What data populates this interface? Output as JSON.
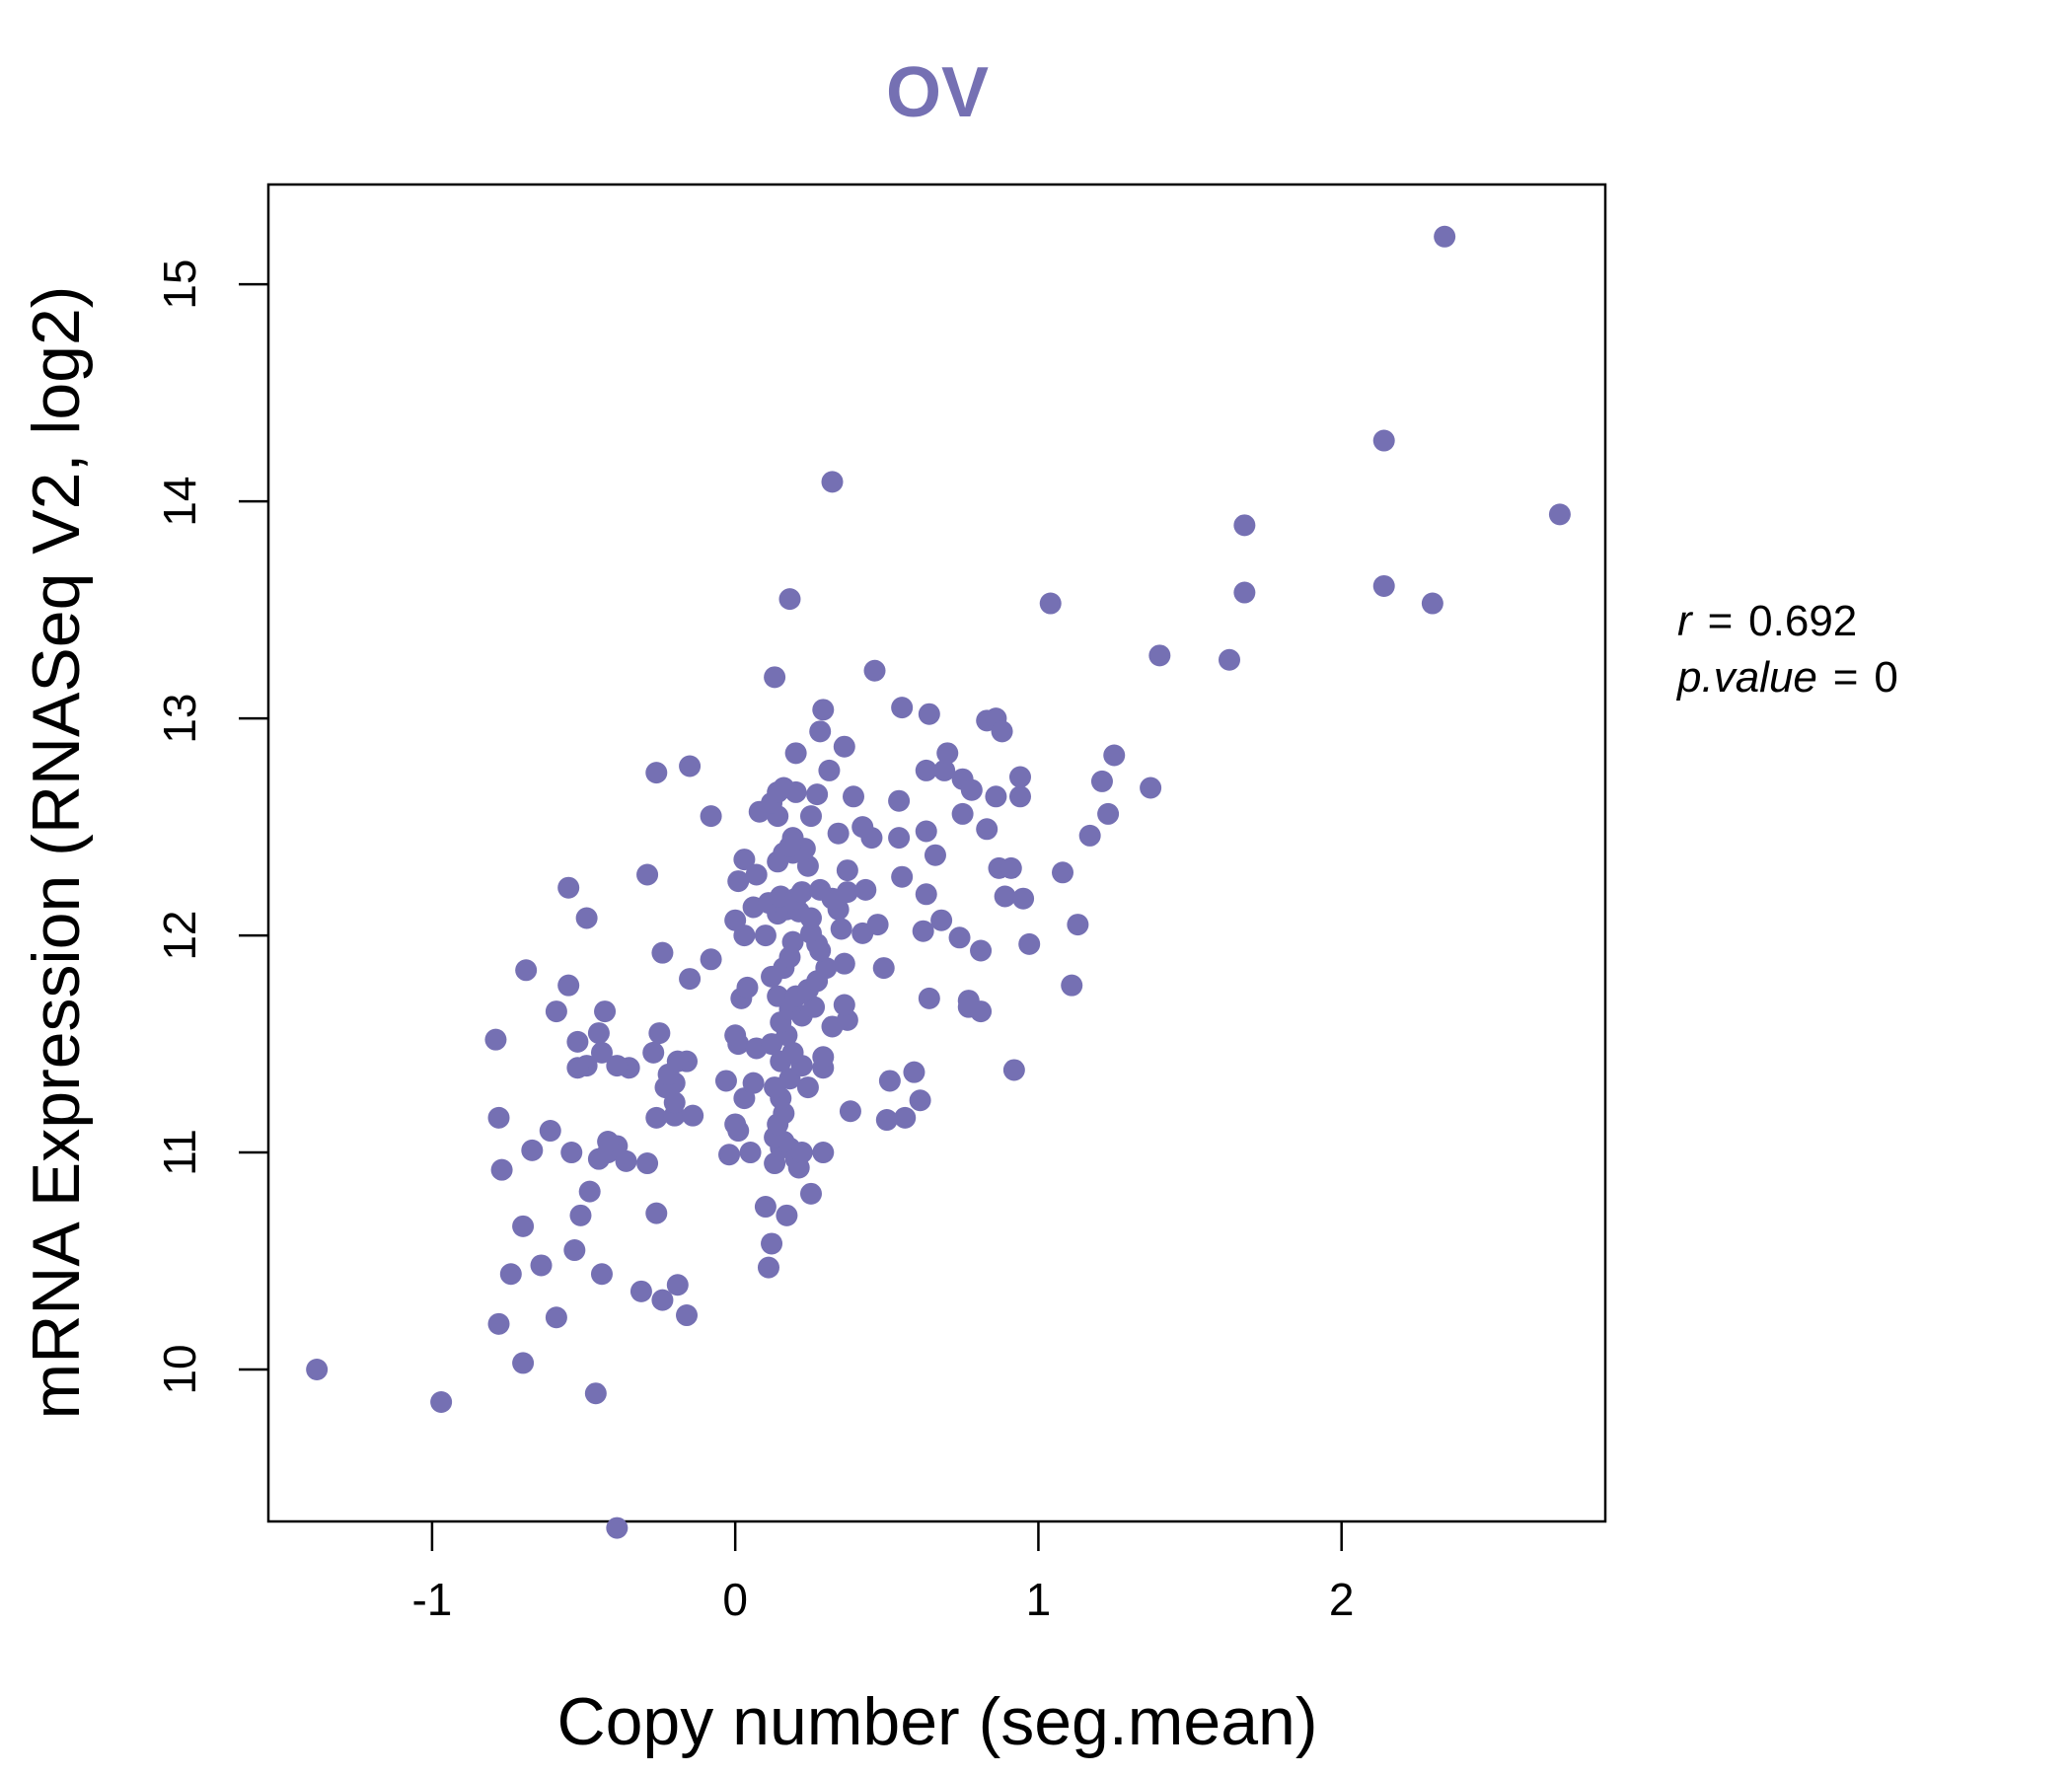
{
  "chart_data": {
    "type": "scatter",
    "title": "OV",
    "xlabel": "Copy number (seg.mean)",
    "ylabel": "mRNA Expression (RNASeq V2, log2)",
    "xlim": [
      -1.54,
      2.87
    ],
    "ylim": [
      9.3,
      15.46
    ],
    "x_ticks": [
      -1,
      0,
      1,
      2
    ],
    "y_ticks": [
      10,
      11,
      12,
      13,
      14,
      15
    ],
    "x_tick_labels": [
      "-1",
      "0",
      "1",
      "2"
    ],
    "y_tick_labels": [
      "10",
      "11",
      "12",
      "13",
      "14",
      "15"
    ],
    "point_color": "#7570b3",
    "title_color": "#7570b3",
    "stats": {
      "r_label": "r",
      "r_value": "0.692",
      "p_label": "p.value",
      "p_value": "0"
    },
    "points": [
      [
        -1.38,
        10.0
      ],
      [
        -0.97,
        9.85
      ],
      [
        -0.39,
        9.27
      ],
      [
        -0.46,
        9.89
      ],
      [
        -0.7,
        10.03
      ],
      [
        -0.78,
        10.21
      ],
      [
        -0.59,
        10.24
      ],
      [
        -0.16,
        10.25
      ],
      [
        -0.24,
        10.32
      ],
      [
        -0.31,
        10.36
      ],
      [
        -0.19,
        10.39
      ],
      [
        -0.44,
        10.44
      ],
      [
        -0.74,
        10.44
      ],
      [
        -0.64,
        10.48
      ],
      [
        -0.53,
        10.55
      ],
      [
        -0.7,
        10.66
      ],
      [
        -0.51,
        10.71
      ],
      [
        -0.26,
        10.72
      ],
      [
        -0.48,
        10.82
      ],
      [
        -0.77,
        10.92
      ],
      [
        -0.29,
        10.95
      ],
      [
        -0.36,
        10.96
      ],
      [
        -0.45,
        10.97
      ],
      [
        -0.42,
        11.0
      ],
      [
        -0.54,
        11.0
      ],
      [
        -0.67,
        11.01
      ],
      [
        -0.39,
        11.03
      ],
      [
        -0.42,
        11.05
      ],
      [
        -0.61,
        11.1
      ],
      [
        -0.78,
        11.16
      ],
      [
        -0.26,
        11.16
      ],
      [
        -0.2,
        11.17
      ],
      [
        -0.14,
        11.17
      ],
      [
        -0.2,
        11.23
      ],
      [
        -0.23,
        11.3
      ],
      [
        -0.2,
        11.32
      ],
      [
        -0.22,
        11.36
      ],
      [
        -0.35,
        11.39
      ],
      [
        -0.39,
        11.4
      ],
      [
        -0.49,
        11.4
      ],
      [
        -0.52,
        11.39
      ],
      [
        -0.16,
        11.42
      ],
      [
        -0.19,
        11.42
      ],
      [
        -0.44,
        11.46
      ],
      [
        -0.27,
        11.46
      ],
      [
        -0.52,
        11.51
      ],
      [
        -0.79,
        11.52
      ],
      [
        -0.45,
        11.55
      ],
      [
        -0.25,
        11.55
      ],
      [
        -0.43,
        11.65
      ],
      [
        -0.59,
        11.65
      ],
      [
        -0.55,
        11.77
      ],
      [
        -0.15,
        11.8
      ],
      [
        -0.69,
        11.84
      ],
      [
        -0.08,
        11.89
      ],
      [
        -0.24,
        11.92
      ],
      [
        -0.49,
        12.08
      ],
      [
        -0.55,
        12.22
      ],
      [
        -0.29,
        12.28
      ],
      [
        -0.08,
        12.55
      ],
      [
        -0.26,
        12.75
      ],
      [
        -0.15,
        12.78
      ],
      [
        0.03,
        11.25
      ],
      [
        0.01,
        11.1
      ],
      [
        0.0,
        11.13
      ],
      [
        -0.02,
        10.99
      ],
      [
        0.05,
        11.0
      ],
      [
        -0.03,
        11.33
      ],
      [
        0.06,
        11.32
      ],
      [
        0.01,
        11.5
      ],
      [
        0.07,
        11.48
      ],
      [
        0.0,
        11.54
      ],
      [
        0.02,
        11.71
      ],
      [
        0.04,
        11.76
      ],
      [
        0.03,
        12.0
      ],
      [
        0.06,
        12.13
      ],
      [
        0.0,
        12.07
      ],
      [
        0.01,
        12.25
      ],
      [
        0.03,
        12.35
      ],
      [
        0.07,
        12.28
      ],
      [
        0.08,
        12.57
      ],
      [
        0.11,
        12.15
      ],
      [
        0.12,
        10.58
      ],
      [
        0.11,
        10.47
      ],
      [
        0.1,
        10.75
      ],
      [
        0.17,
        10.71
      ],
      [
        0.13,
        10.95
      ],
      [
        0.15,
        11.02
      ],
      [
        0.18,
        11.02
      ],
      [
        0.2,
        10.97
      ],
      [
        0.21,
        10.93
      ],
      [
        0.16,
        11.05
      ],
      [
        0.13,
        11.07
      ],
      [
        0.25,
        10.81
      ],
      [
        0.22,
        11.0
      ],
      [
        0.29,
        11.0
      ],
      [
        0.14,
        11.13
      ],
      [
        0.16,
        11.18
      ],
      [
        0.15,
        11.25
      ],
      [
        0.13,
        11.3
      ],
      [
        0.18,
        11.34
      ],
      [
        0.24,
        11.3
      ],
      [
        0.22,
        11.4
      ],
      [
        0.29,
        11.39
      ],
      [
        0.15,
        11.42
      ],
      [
        0.19,
        11.46
      ],
      [
        0.12,
        11.5
      ],
      [
        0.17,
        11.54
      ],
      [
        0.15,
        11.6
      ],
      [
        0.22,
        11.63
      ],
      [
        0.26,
        11.67
      ],
      [
        0.32,
        11.58
      ],
      [
        0.37,
        11.61
      ],
      [
        0.36,
        11.68
      ],
      [
        0.18,
        11.66
      ],
      [
        0.19,
        11.7
      ],
      [
        0.14,
        11.72
      ],
      [
        0.2,
        11.72
      ],
      [
        0.24,
        11.75
      ],
      [
        0.27,
        11.79
      ],
      [
        0.3,
        11.85
      ],
      [
        0.16,
        11.85
      ],
      [
        0.18,
        11.9
      ],
      [
        0.12,
        11.81
      ],
      [
        0.19,
        11.97
      ],
      [
        0.27,
        11.96
      ],
      [
        0.25,
        12.01
      ],
      [
        0.28,
        11.93
      ],
      [
        0.36,
        11.87
      ],
      [
        0.1,
        12.0
      ],
      [
        0.14,
        12.1
      ],
      [
        0.17,
        12.12
      ],
      [
        0.21,
        12.11
      ],
      [
        0.25,
        12.08
      ],
      [
        0.35,
        12.03
      ],
      [
        0.34,
        12.12
      ],
      [
        0.32,
        12.17
      ],
      [
        0.15,
        12.18
      ],
      [
        0.2,
        12.17
      ],
      [
        0.22,
        12.2
      ],
      [
        0.28,
        12.21
      ],
      [
        0.37,
        12.2
      ],
      [
        0.43,
        12.21
      ],
      [
        0.14,
        12.34
      ],
      [
        0.16,
        12.38
      ],
      [
        0.19,
        12.38
      ],
      [
        0.24,
        12.32
      ],
      [
        0.19,
        12.45
      ],
      [
        0.23,
        12.4
      ],
      [
        0.34,
        12.47
      ],
      [
        0.45,
        12.45
      ],
      [
        0.42,
        12.5
      ],
      [
        0.37,
        12.3
      ],
      [
        0.18,
        12.41
      ],
      [
        0.14,
        12.55
      ],
      [
        0.25,
        12.55
      ],
      [
        0.12,
        12.61
      ],
      [
        0.14,
        12.66
      ],
      [
        0.2,
        12.66
      ],
      [
        0.27,
        12.65
      ],
      [
        0.16,
        12.68
      ],
      [
        0.39,
        12.64
      ],
      [
        0.31,
        12.76
      ],
      [
        0.2,
        12.84
      ],
      [
        0.36,
        12.87
      ],
      [
        0.28,
        12.94
      ],
      [
        0.29,
        13.04
      ],
      [
        0.13,
        13.19
      ],
      [
        0.46,
        13.22
      ],
      [
        0.18,
        13.55
      ],
      [
        0.32,
        14.09
      ],
      [
        0.42,
        12.01
      ],
      [
        0.47,
        12.05
      ],
      [
        0.49,
        11.85
      ],
      [
        0.55,
        12.27
      ],
      [
        0.54,
        12.45
      ],
      [
        0.54,
        12.62
      ],
      [
        0.63,
        12.48
      ],
      [
        0.66,
        12.37
      ],
      [
        0.63,
        12.19
      ],
      [
        0.62,
        12.02
      ],
      [
        0.68,
        12.07
      ],
      [
        0.64,
        11.71
      ],
      [
        0.5,
        11.15
      ],
      [
        0.56,
        11.16
      ],
      [
        0.51,
        11.33
      ],
      [
        0.59,
        11.37
      ],
      [
        0.61,
        11.24
      ],
      [
        0.38,
        11.19
      ],
      [
        0.29,
        11.44
      ],
      [
        0.55,
        13.05
      ],
      [
        0.64,
        13.02
      ],
      [
        0.63,
        12.76
      ],
      [
        0.69,
        12.76
      ],
      [
        0.7,
        12.84
      ],
      [
        0.75,
        12.72
      ],
      [
        0.78,
        12.67
      ],
      [
        0.75,
        12.56
      ],
      [
        0.83,
        12.49
      ],
      [
        0.86,
        12.64
      ],
      [
        0.94,
        12.64
      ],
      [
        0.94,
        12.73
      ],
      [
        0.83,
        12.99
      ],
      [
        0.86,
        13.0
      ],
      [
        0.88,
        12.94
      ],
      [
        0.87,
        12.31
      ],
      [
        0.91,
        12.31
      ],
      [
        0.89,
        12.18
      ],
      [
        0.95,
        12.17
      ],
      [
        0.97,
        11.96
      ],
      [
        0.81,
        11.93
      ],
      [
        0.74,
        11.99
      ],
      [
        0.77,
        11.7
      ],
      [
        0.77,
        11.67
      ],
      [
        0.81,
        11.65
      ],
      [
        0.92,
        11.38
      ],
      [
        1.04,
        13.53
      ],
      [
        1.08,
        12.29
      ],
      [
        1.13,
        12.05
      ],
      [
        1.11,
        11.77
      ],
      [
        1.17,
        12.46
      ],
      [
        1.23,
        12.56
      ],
      [
        1.21,
        12.71
      ],
      [
        1.25,
        12.83
      ],
      [
        1.37,
        12.68
      ],
      [
        1.4,
        13.29
      ],
      [
        1.63,
        13.27
      ],
      [
        1.68,
        13.58
      ],
      [
        1.68,
        13.89
      ],
      [
        2.14,
        14.28
      ],
      [
        2.14,
        13.61
      ],
      [
        2.3,
        13.53
      ],
      [
        2.34,
        15.22
      ],
      [
        2.72,
        13.94
      ]
    ]
  }
}
